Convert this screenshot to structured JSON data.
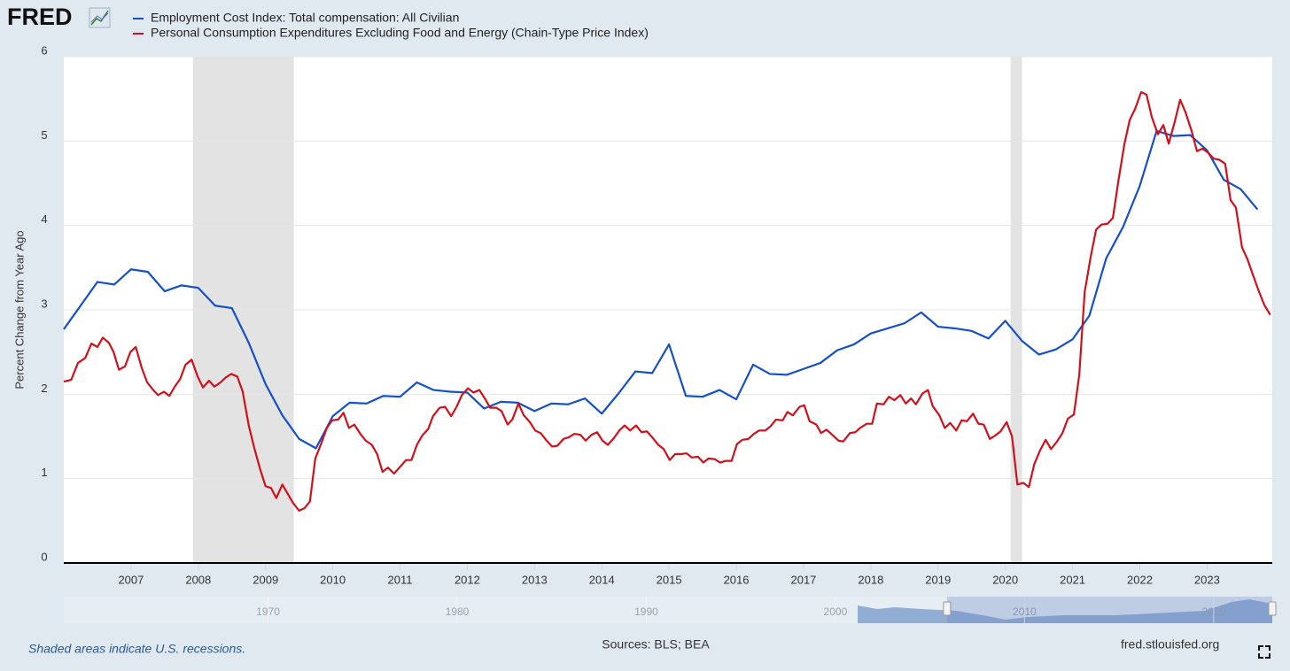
{
  "chart_data": {
    "type": "line",
    "logo": "FRED",
    "ylabel": "Percent Change from Year Ago",
    "note": "Shaded areas indicate U.S. recessions.",
    "sources": "Sources: BLS; BEA",
    "site": "fred.stlouisfed.org",
    "xlim": [
      2006,
      2023.97
    ],
    "xticks": [
      2007,
      2008,
      2009,
      2010,
      2011,
      2012,
      2013,
      2014,
      2015,
      2016,
      2017,
      2018,
      2019,
      2020,
      2021,
      2022,
      2023
    ],
    "ylim": [
      0,
      6
    ],
    "yticks": [
      0,
      1,
      2,
      3,
      4,
      5,
      6
    ],
    "grid": true,
    "recessions": [
      [
        2007.92,
        2009.42
      ],
      [
        2020.08,
        2020.25
      ]
    ],
    "navigator": {
      "xlim": [
        1959.2,
        2023.1
      ],
      "xticks": [
        1970,
        1980,
        1990,
        2000,
        2010,
        2020
      ],
      "selection": [
        2005.9,
        2023.1
      ]
    },
    "series": [
      {
        "name": "Employment Cost Index: Total compensation: All Civilian",
        "color": "#1450c8",
        "x": [
          2006,
          2006.25,
          2006.5,
          2006.75,
          2007,
          2007.25,
          2007.5,
          2007.75,
          2008,
          2008.25,
          2008.5,
          2008.75,
          2009,
          2009.25,
          2009.5,
          2009.75,
          2010,
          2010.25,
          2010.5,
          2010.75,
          2011,
          2011.25,
          2011.5,
          2011.75,
          2012,
          2012.25,
          2012.5,
          2012.75,
          2013,
          2013.25,
          2013.5,
          2013.75,
          2014,
          2014.25,
          2014.5,
          2014.75,
          2015,
          2015.25,
          2015.5,
          2015.75,
          2016,
          2016.25,
          2016.5,
          2016.75,
          2017,
          2017.25,
          2017.5,
          2017.75,
          2018,
          2018.25,
          2018.5,
          2018.75,
          2019,
          2019.25,
          2019.5,
          2019.75,
          2020,
          2020.25,
          2020.5,
          2020.75,
          2021,
          2021.25,
          2021.5,
          2021.75,
          2022,
          2022.25,
          2022.5,
          2022.75,
          2023,
          2023.25,
          2023.5,
          2023.75
        ],
        "values": [
          2.77,
          3.05,
          3.33,
          3.3,
          3.48,
          3.45,
          3.22,
          3.29,
          3.26,
          3.05,
          3.02,
          2.61,
          2.12,
          1.75,
          1.47,
          1.36,
          1.74,
          1.9,
          1.89,
          1.98,
          1.97,
          2.14,
          2.05,
          2.03,
          2.02,
          1.83,
          1.91,
          1.9,
          1.8,
          1.89,
          1.88,
          1.95,
          1.77,
          2.01,
          2.27,
          2.25,
          2.59,
          1.98,
          1.97,
          2.05,
          1.94,
          2.35,
          2.24,
          2.23,
          2.3,
          2.37,
          2.52,
          2.59,
          2.72,
          2.78,
          2.84,
          2.97,
          2.8,
          2.78,
          2.75,
          2.66,
          2.87,
          2.63,
          2.47,
          2.53,
          2.65,
          2.93,
          3.61,
          3.98,
          4.47,
          5.12,
          5.06,
          5.07,
          4.89,
          4.54,
          4.43,
          4.19
        ]
      },
      {
        "name": "Personal Consumption Expenditures Excluding Food and Energy (Chain-Type Price Index)",
        "color": "#d0111b",
        "x": [
          2006.0,
          2006.11,
          2006.21,
          2006.32,
          2006.41,
          2006.5,
          2006.58,
          2006.67,
          2006.74,
          2006.82,
          2006.91,
          2006.99,
          2007.07,
          2007.16,
          2007.24,
          2007.32,
          2007.4,
          2007.49,
          2007.57,
          2007.65,
          2007.73,
          2007.81,
          2007.9,
          2007.99,
          2008.07,
          2008.16,
          2008.24,
          2008.33,
          2008.41,
          2008.49,
          2008.58,
          2008.66,
          2008.75,
          2008.83,
          2008.92,
          2009.0,
          2009.08,
          2009.16,
          2009.25,
          2009.33,
          2009.41,
          2009.5,
          2009.58,
          2009.66,
          2009.74,
          2009.83,
          2009.91,
          2009.99,
          2010.08,
          2010.16,
          2010.24,
          2010.32,
          2010.41,
          2010.49,
          2010.58,
          2010.66,
          2010.74,
          2010.82,
          2010.91,
          2010.99,
          2011.09,
          2011.17,
          2011.25,
          2011.33,
          2011.42,
          2011.49,
          2011.59,
          2011.67,
          2011.76,
          2011.84,
          2011.92,
          2012.01,
          2012.09,
          2012.18,
          2012.26,
          2012.34,
          2012.43,
          2012.51,
          2012.6,
          2012.67,
          2012.76,
          2012.84,
          2012.93,
          2013.01,
          2013.09,
          2013.18,
          2013.26,
          2013.34,
          2013.43,
          2013.51,
          2013.59,
          2013.68,
          2013.76,
          2013.85,
          2013.93,
          2014.01,
          2014.09,
          2014.18,
          2014.26,
          2014.34,
          2014.42,
          2014.51,
          2014.59,
          2014.67,
          2014.76,
          2014.84,
          2014.92,
          2015.01,
          2015.09,
          2015.18,
          2015.26,
          2015.34,
          2015.43,
          2015.51,
          2015.59,
          2015.68,
          2015.76,
          2015.84,
          2015.93,
          2016.01,
          2016.09,
          2016.18,
          2016.26,
          2016.34,
          2016.43,
          2016.51,
          2016.59,
          2016.69,
          2016.76,
          2016.84,
          2016.94,
          2017.01,
          2017.09,
          2017.19,
          2017.26,
          2017.34,
          2017.44,
          2017.52,
          2017.59,
          2017.69,
          2017.77,
          2017.84,
          2017.94,
          2018.02,
          2018.09,
          2018.19,
          2018.27,
          2018.35,
          2018.44,
          2018.52,
          2018.6,
          2018.67,
          2018.77,
          2018.85,
          2018.92,
          2019.02,
          2019.1,
          2019.18,
          2019.27,
          2019.35,
          2019.43,
          2019.52,
          2019.6,
          2019.68,
          2019.77,
          2019.85,
          2019.93,
          2020.02,
          2020.1,
          2020.18,
          2020.27,
          2020.35,
          2020.43,
          2020.52,
          2020.6,
          2020.68,
          2020.77,
          2020.85,
          2020.93,
          2021.02,
          2021.1,
          2021.18,
          2021.27,
          2021.35,
          2021.43,
          2021.52,
          2021.6,
          2021.68,
          2021.77,
          2021.85,
          2021.93,
          2022.02,
          2022.1,
          2022.18,
          2022.27,
          2022.35,
          2022.43,
          2022.52,
          2022.6,
          2022.68,
          2022.77,
          2022.85,
          2022.93,
          2023.02,
          2023.1,
          2023.18,
          2023.27,
          2023.35,
          2023.43,
          2023.52,
          2023.6,
          2023.68,
          2023.77,
          2023.85,
          2023.94
        ],
        "values": [
          2.15,
          2.17,
          2.37,
          2.43,
          2.6,
          2.56,
          2.67,
          2.61,
          2.5,
          2.29,
          2.33,
          2.5,
          2.56,
          2.31,
          2.14,
          2.06,
          1.99,
          2.03,
          1.98,
          2.09,
          2.18,
          2.35,
          2.41,
          2.21,
          2.08,
          2.16,
          2.09,
          2.14,
          2.2,
          2.24,
          2.21,
          2.03,
          1.63,
          1.37,
          1.11,
          0.91,
          0.89,
          0.77,
          0.93,
          0.82,
          0.71,
          0.62,
          0.65,
          0.73,
          1.24,
          1.42,
          1.6,
          1.69,
          1.7,
          1.78,
          1.6,
          1.64,
          1.53,
          1.45,
          1.4,
          1.29,
          1.08,
          1.13,
          1.06,
          1.13,
          1.22,
          1.22,
          1.4,
          1.51,
          1.59,
          1.74,
          1.84,
          1.85,
          1.74,
          1.85,
          1.99,
          2.07,
          2.02,
          2.05,
          1.95,
          1.84,
          1.84,
          1.8,
          1.64,
          1.7,
          1.89,
          1.75,
          1.67,
          1.57,
          1.54,
          1.45,
          1.38,
          1.39,
          1.47,
          1.49,
          1.53,
          1.52,
          1.45,
          1.52,
          1.55,
          1.45,
          1.4,
          1.48,
          1.57,
          1.63,
          1.57,
          1.63,
          1.55,
          1.56,
          1.48,
          1.4,
          1.35,
          1.22,
          1.29,
          1.29,
          1.3,
          1.25,
          1.26,
          1.19,
          1.24,
          1.23,
          1.19,
          1.21,
          1.21,
          1.41,
          1.46,
          1.47,
          1.53,
          1.57,
          1.57,
          1.62,
          1.7,
          1.69,
          1.79,
          1.75,
          1.85,
          1.87,
          1.68,
          1.64,
          1.54,
          1.58,
          1.51,
          1.45,
          1.44,
          1.54,
          1.55,
          1.6,
          1.65,
          1.65,
          1.89,
          1.88,
          1.97,
          1.93,
          1.99,
          1.89,
          1.95,
          1.88,
          2.01,
          2.05,
          1.86,
          1.75,
          1.6,
          1.66,
          1.57,
          1.69,
          1.68,
          1.77,
          1.65,
          1.64,
          1.47,
          1.51,
          1.56,
          1.67,
          1.5,
          0.93,
          0.95,
          0.9,
          1.17,
          1.34,
          1.46,
          1.35,
          1.44,
          1.54,
          1.71,
          1.76,
          2.23,
          3.21,
          3.63,
          3.95,
          4.01,
          4.02,
          4.09,
          4.52,
          4.96,
          5.25,
          5.38,
          5.58,
          5.55,
          5.28,
          5.08,
          5.19,
          4.97,
          5.23,
          5.49,
          5.34,
          5.12,
          4.88,
          4.91,
          4.86,
          4.79,
          4.78,
          4.73,
          4.3,
          4.21,
          3.74,
          3.6,
          3.42,
          3.22,
          3.06,
          2.94
        ]
      }
    ]
  }
}
